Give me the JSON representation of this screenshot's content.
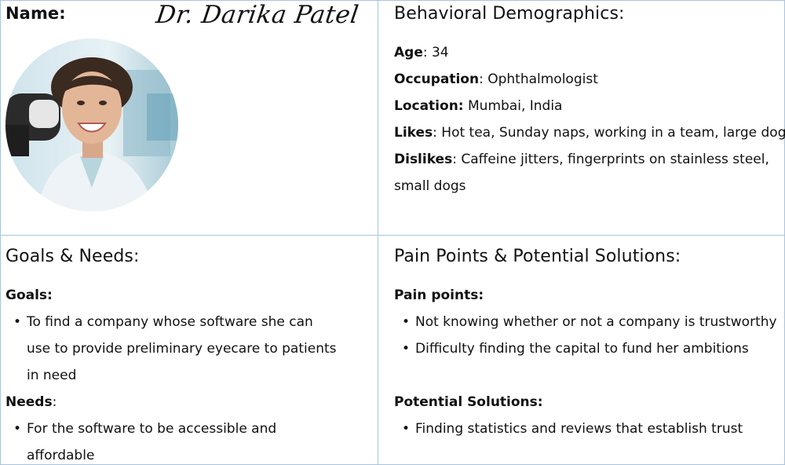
{
  "profile": {
    "name_label": "Name:",
    "name_value": "Dr. Darika Patel",
    "photo_icon": "person-photo-icon"
  },
  "demographics": {
    "heading": "Behavioral Demographics:",
    "age_label": "Age",
    "age_value": ": 34",
    "occupation_label": "Occupation",
    "occupation_value": ": Ophthalmologist",
    "location_label": "Location:",
    "location_value": " Mumbai, India",
    "likes_label": "Likes",
    "likes_value": ": Hot tea, Sunday naps, working in a team, large dogs",
    "dislikes_label": "Dislikes",
    "dislikes_value_line1": ": Caffeine jitters, fingerprints on stainless steel,",
    "dislikes_value_line2": "small dogs"
  },
  "goals_needs": {
    "heading": "Goals & Needs:",
    "goals_label": "Goals:",
    "goals_item1_line1": "To find a company whose software she can",
    "goals_item1_line2": "use to provide preliminary eyecare to patients",
    "goals_item1_line3": "in need",
    "needs_label": "Needs",
    "needs_colon": ":",
    "needs_item1_line1": " For the software to be accessible and",
    "needs_item1_line2": "affordable"
  },
  "pain_points": {
    "heading": "Pain Points & Potential Solutions:",
    "pain_label": "Pain points:",
    "pain_item1": "Not knowing whether or not a company is trustworthy",
    "pain_item2": "Difficulty finding the capital to fund her ambitions",
    "solutions_label": "Potential Solutions:",
    "solution_item1": " Finding statistics and reviews that establish trust"
  },
  "colors": {
    "border": "#a9c4dd",
    "text": "#111111"
  }
}
